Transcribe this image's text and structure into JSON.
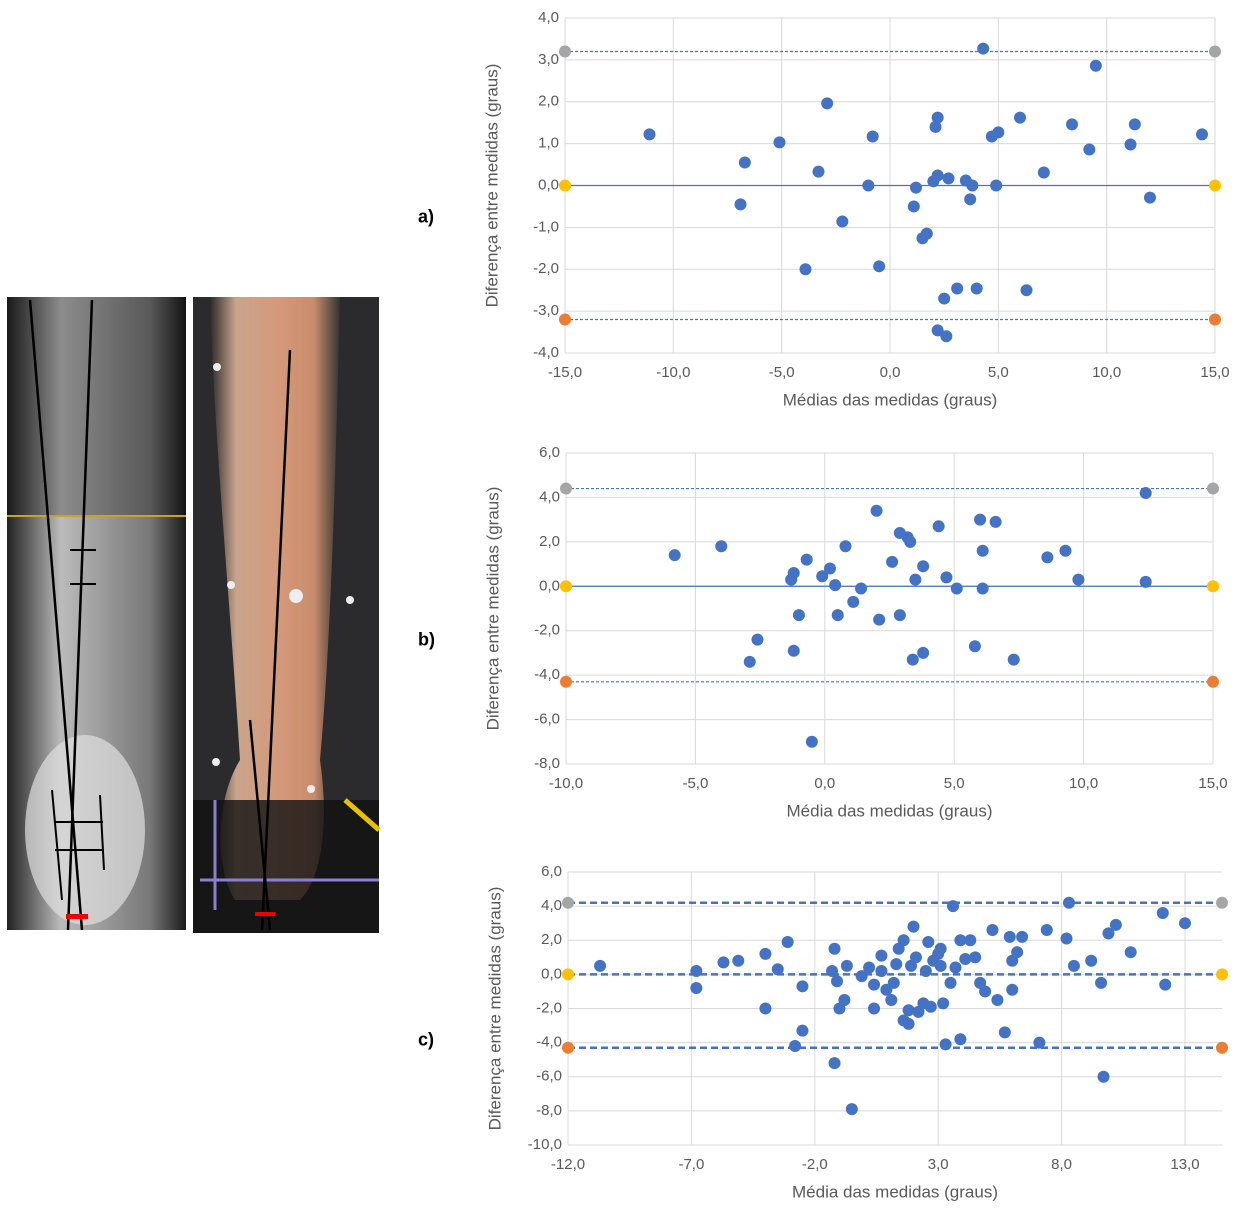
{
  "chart_data": [
    {
      "type": "scatter",
      "panel_label": "a)",
      "x_label": "Médias das medidas (graus)",
      "y_label": "Diferença entre medidas (graus)",
      "color": "#4472c4",
      "grid": true,
      "xlim": [
        -15,
        15
      ],
      "ylim": [
        -4,
        4
      ],
      "xticks": [
        {
          "value": -15,
          "label": "-15,0"
        },
        {
          "value": -10,
          "label": "-10,0"
        },
        {
          "value": -5,
          "label": "-5,0"
        },
        {
          "value": 0,
          "label": "0,0"
        },
        {
          "value": 5,
          "label": "5,0"
        },
        {
          "value": 10,
          "label": "10,0"
        },
        {
          "value": 15,
          "label": "15,0"
        }
      ],
      "yticks": [
        {
          "value": 4,
          "label": "4,0"
        },
        {
          "value": 3,
          "label": "3,0"
        },
        {
          "value": 2,
          "label": "2,0"
        },
        {
          "value": 1,
          "label": "1,0"
        },
        {
          "value": 0,
          "label": "0,0"
        },
        {
          "value": -1,
          "label": "-1,0"
        },
        {
          "value": -2,
          "label": "-2,0"
        },
        {
          "value": -3,
          "label": "-3,0"
        },
        {
          "value": -4,
          "label": "-4,0"
        }
      ],
      "reference_lines": [
        {
          "value": 3.2,
          "dashed": true,
          "marker_color": "#a5a5a5"
        },
        {
          "value": 0,
          "dashed": false,
          "marker_color": "#ffc000"
        },
        {
          "value": -3.2,
          "dashed": true,
          "marker_color": "#ed7d31"
        }
      ],
      "x": [
        -11.1,
        -6.9,
        -6.7,
        -5.1,
        -3.9,
        -3.3,
        -2.9,
        -2.2,
        -1.0,
        -0.8,
        -0.5,
        1.1,
        1.2,
        1.5,
        1.7,
        2.0,
        2.1,
        2.2,
        2.2,
        2.2,
        2.5,
        2.6,
        2.7,
        3.1,
        3.5,
        3.7,
        3.8,
        4.0,
        4.3,
        4.7,
        4.9,
        5.0,
        6.0,
        6.3,
        7.1,
        8.4,
        9.2,
        9.5,
        11.1,
        11.3,
        12.0,
        14.4
      ],
      "values": [
        1.22,
        -0.45,
        0.55,
        1.03,
        -2.0,
        0.33,
        1.96,
        -0.86,
        0.0,
        1.17,
        -1.93,
        -0.5,
        -0.05,
        -1.26,
        -1.15,
        0.1,
        1.4,
        1.62,
        0.24,
        -3.46,
        -2.7,
        -3.6,
        0.17,
        -2.46,
        0.12,
        -0.33,
        0.0,
        -2.46,
        3.27,
        1.17,
        0.0,
        1.27,
        1.62,
        -2.5,
        0.31,
        1.46,
        0.86,
        2.86,
        0.98,
        1.46,
        -0.29,
        1.22
      ]
    },
    {
      "type": "scatter",
      "panel_label": "b)",
      "x_label": "Média das medidas (graus)",
      "y_label": "Diferença entre medidas (graus)",
      "color": "#4472c4",
      "grid": true,
      "xlim": [
        -10,
        15
      ],
      "ylim": [
        -8,
        6
      ],
      "xticks": [
        {
          "value": -10,
          "label": "-10,0"
        },
        {
          "value": -5,
          "label": "-5,0"
        },
        {
          "value": 0,
          "label": "0,0"
        },
        {
          "value": 5,
          "label": "5,0"
        },
        {
          "value": 10,
          "label": "10,0"
        },
        {
          "value": 15,
          "label": "15,0"
        }
      ],
      "yticks": [
        {
          "value": 6,
          "label": "6,0"
        },
        {
          "value": 4,
          "label": "4,0"
        },
        {
          "value": 2,
          "label": "2,0"
        },
        {
          "value": 0,
          "label": "0,0"
        },
        {
          "value": -2,
          "label": "-2,0"
        },
        {
          "value": -4,
          "label": "-4,0"
        },
        {
          "value": -6,
          "label": "-6,0"
        },
        {
          "value": -8,
          "label": "-8,0"
        }
      ],
      "reference_lines": [
        {
          "value": 4.4,
          "dashed": true,
          "marker_color": "#a5a5a5"
        },
        {
          "value": 0,
          "dashed": false,
          "marker_color": "#ffc000"
        },
        {
          "value": -4.3,
          "dashed": true,
          "marker_color": "#ed7d31"
        }
      ],
      "x": [
        -5.8,
        -4.0,
        -2.9,
        -2.6,
        -1.2,
        -0.7,
        -1.3,
        -1.0,
        -1.2,
        -0.5,
        -0.1,
        0.2,
        0.4,
        0.5,
        0.8,
        1.1,
        1.4,
        2.1,
        2.0,
        2.6,
        2.9,
        2.9,
        3.2,
        3.3,
        3.4,
        3.5,
        3.8,
        3.8,
        4.4,
        4.7,
        5.1,
        5.8,
        6.0,
        6.1,
        6.1,
        6.6,
        7.3,
        8.6,
        9.3,
        9.8,
        12.4,
        12.4
      ],
      "values": [
        1.4,
        1.8,
        -3.4,
        -2.4,
        0.6,
        1.2,
        0.3,
        -1.3,
        -2.9,
        -7.0,
        0.45,
        0.8,
        0.05,
        -1.3,
        1.8,
        -0.7,
        -0.1,
        -1.5,
        3.4,
        1.1,
        2.4,
        -1.3,
        2.2,
        2.0,
        -3.3,
        0.3,
        0.9,
        -3.0,
        2.7,
        0.4,
        -0.1,
        -2.7,
        3.0,
        1.6,
        -0.1,
        2.9,
        -3.3,
        1.3,
        1.6,
        0.3,
        4.2,
        0.2
      ]
    },
    {
      "type": "scatter",
      "panel_label": "c)",
      "x_label": "Média das medidas (graus)",
      "y_label": "Diferença entre medidas (graus)",
      "color": "#4472c4",
      "grid": true,
      "xlim": [
        -12,
        14.5
      ],
      "ylim": [
        -10,
        6
      ],
      "xticks": [
        {
          "value": -12,
          "label": "-12,0"
        },
        {
          "value": -7,
          "label": "-7,0"
        },
        {
          "value": -2,
          "label": "-2,0"
        },
        {
          "value": 3,
          "label": "3,0"
        },
        {
          "value": 8,
          "label": "8,0"
        },
        {
          "value": 13,
          "label": "13,0"
        }
      ],
      "yticks": [
        {
          "value": 6,
          "label": "6,0"
        },
        {
          "value": 4,
          "label": "4,0"
        },
        {
          "value": 2,
          "label": "2,0"
        },
        {
          "value": 0,
          "label": "0,0"
        },
        {
          "value": -2,
          "label": "-2,0"
        },
        {
          "value": -4,
          "label": "-4,0"
        },
        {
          "value": -6,
          "label": "-6,0"
        },
        {
          "value": -8,
          "label": "-8,0"
        },
        {
          "value": -10,
          "label": "-10,0"
        }
      ],
      "reference_lines": [
        {
          "value": 4.2,
          "dashed": true,
          "marker_color": "#a5a5a5"
        },
        {
          "value": 0,
          "dashed": true,
          "marker_color": "#ffc000"
        },
        {
          "value": -4.3,
          "dashed": true,
          "marker_color": "#ed7d31"
        }
      ],
      "x": [
        -10.7,
        -6.8,
        -6.8,
        -5.7,
        -5.1,
        -4.0,
        -4.0,
        -3.5,
        -3.1,
        -2.8,
        -2.5,
        -2.5,
        -1.3,
        -1.2,
        -1.2,
        -1.1,
        -1.0,
        -0.8,
        -0.7,
        -0.5,
        -0.1,
        0.2,
        0.4,
        0.4,
        0.7,
        0.7,
        0.9,
        1.1,
        1.2,
        1.3,
        1.4,
        1.6,
        1.6,
        1.8,
        1.8,
        1.9,
        2.0,
        2.1,
        2.2,
        2.4,
        2.5,
        2.6,
        2.7,
        2.8,
        3.0,
        3.1,
        3.1,
        3.2,
        3.3,
        3.5,
        3.6,
        3.7,
        3.9,
        3.9,
        4.1,
        4.3,
        4.5,
        4.7,
        4.9,
        5.2,
        5.4,
        5.7,
        5.9,
        6.0,
        6.0,
        6.2,
        6.4,
        7.1,
        7.4,
        8.2,
        8.3,
        8.5,
        9.2,
        9.6,
        9.7,
        9.9,
        10.2,
        10.8,
        12.1,
        12.2,
        13.0
      ],
      "values": [
        0.5,
        0.2,
        -0.8,
        0.7,
        0.8,
        1.2,
        -2.0,
        0.3,
        1.9,
        -4.2,
        -3.3,
        -0.7,
        0.2,
        1.5,
        -5.2,
        -0.4,
        -2.0,
        -1.5,
        0.5,
        -7.9,
        -0.1,
        0.4,
        -0.6,
        -2.0,
        1.1,
        0.2,
        -0.9,
        -1.5,
        -0.5,
        0.6,
        1.5,
        2.0,
        -2.7,
        -2.1,
        -2.9,
        0.5,
        2.8,
        1.0,
        -2.2,
        -1.7,
        0.2,
        1.9,
        -1.9,
        0.8,
        1.2,
        0.5,
        1.5,
        -1.7,
        -4.1,
        -0.5,
        4.0,
        0.4,
        -3.8,
        2.0,
        0.9,
        2.0,
        1.0,
        -0.5,
        -1.0,
        2.6,
        -1.5,
        -3.4,
        2.2,
        0.8,
        -0.9,
        1.3,
        2.2,
        -4.0,
        2.6,
        2.1,
        4.2,
        0.5,
        0.8,
        -0.5,
        -6.0,
        2.4,
        2.9,
        1.3,
        3.6,
        -0.6,
        3.0
      ]
    }
  ]
}
